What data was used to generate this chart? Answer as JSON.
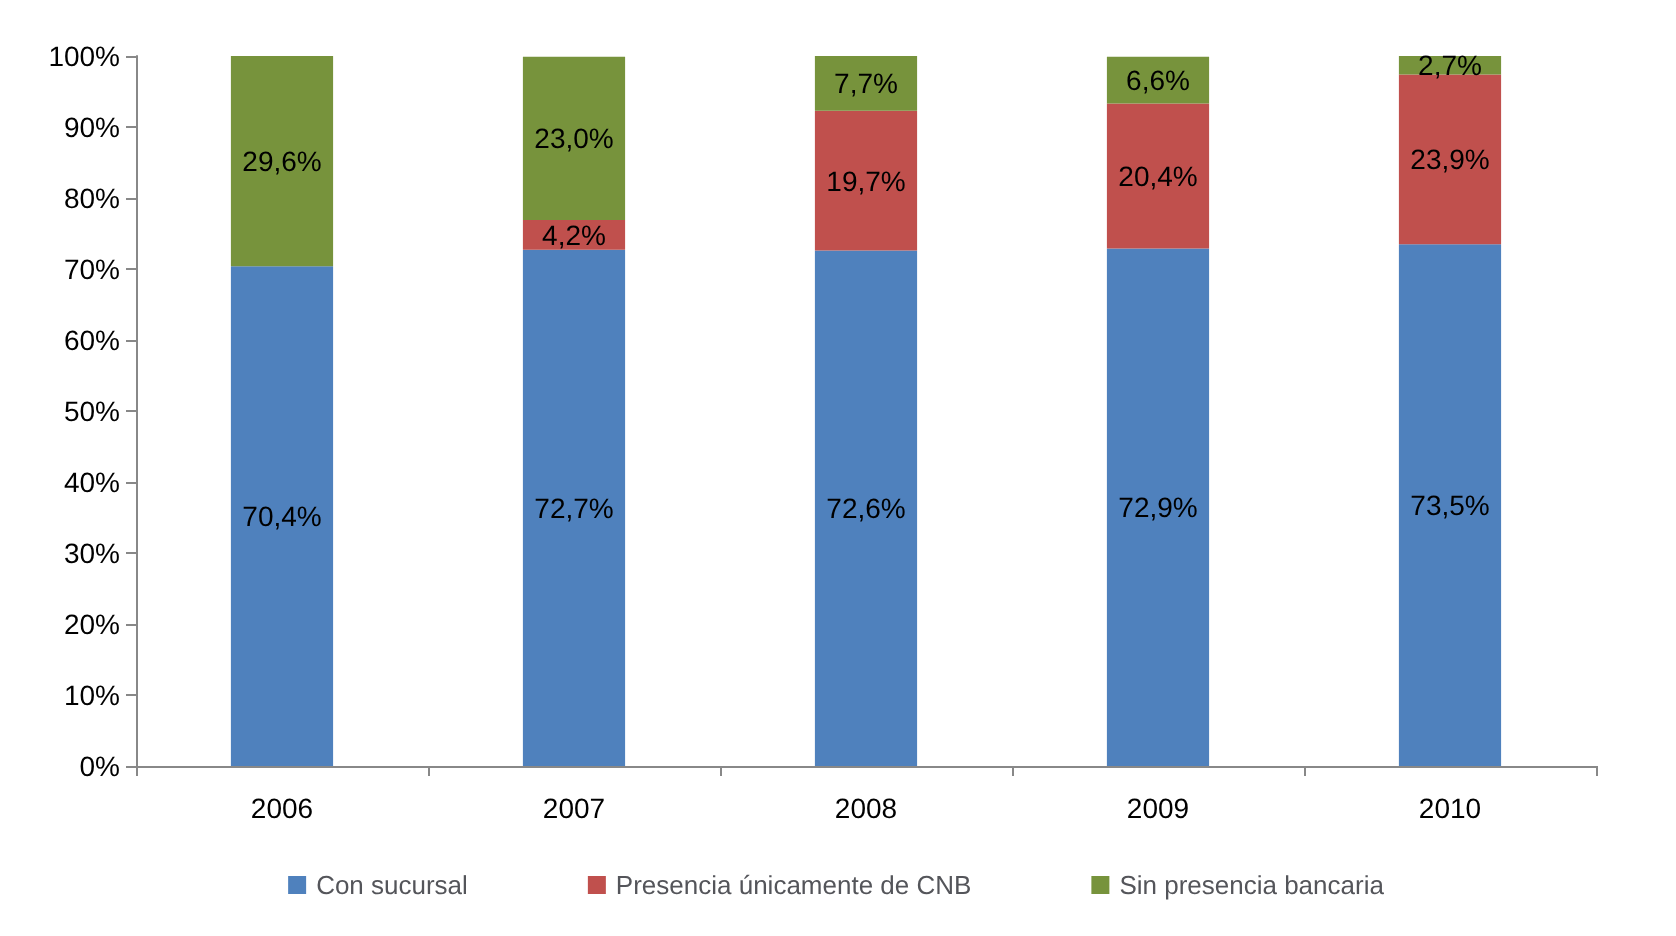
{
  "chart_data": {
    "type": "bar",
    "stacked": true,
    "categories": [
      "2006",
      "2007",
      "2008",
      "2009",
      "2010"
    ],
    "series": [
      {
        "name": "Con sucursal",
        "color": "#4f81bd",
        "values": [
          70.4,
          72.7,
          72.6,
          72.9,
          73.5
        ],
        "value_labels": [
          "70,4%",
          "72,7%",
          "72,6%",
          "72,9%",
          "73,5%"
        ]
      },
      {
        "name": "Presencia únicamente de CNB",
        "color": "#c0504d",
        "values": [
          null,
          4.2,
          19.7,
          20.4,
          23.9
        ],
        "value_labels": [
          null,
          "4,2%",
          "19,7%",
          "20,4%",
          "23,9%"
        ]
      },
      {
        "name": "Sin presencia bancaria",
        "color": "#77933c",
        "values": [
          29.6,
          23.0,
          7.7,
          6.6,
          2.7
        ],
        "value_labels": [
          "29,6%",
          "23,0%",
          "7,7%",
          "6,6%",
          "2,7%"
        ]
      }
    ],
    "ylim": [
      0,
      100
    ],
    "yticks": [
      {
        "value": 0,
        "label": "0%"
      },
      {
        "value": 10,
        "label": "10%"
      },
      {
        "value": 20,
        "label": "20%"
      },
      {
        "value": 30,
        "label": "30%"
      },
      {
        "value": 40,
        "label": "40%"
      },
      {
        "value": 50,
        "label": "50%"
      },
      {
        "value": 60,
        "label": "60%"
      },
      {
        "value": 70,
        "label": "70%"
      },
      {
        "value": 80,
        "label": "80%"
      },
      {
        "value": 90,
        "label": "90%"
      },
      {
        "value": 100,
        "label": "100%"
      }
    ],
    "grid": false,
    "legend": "bottom"
  }
}
